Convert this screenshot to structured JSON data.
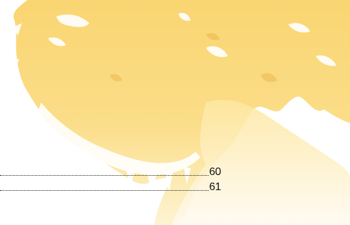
{
  "toc": {
    "entries": [
      {
        "page": "60"
      },
      {
        "page": "61"
      }
    ]
  },
  "colors": {
    "background": "#ffffff",
    "artwork_yellow_light": "#fde9a6",
    "artwork_yellow_deep": "#f7cf5c",
    "leader": "#1a1a1a"
  },
  "icons": {
    "decoration": "sun-brush-artwork"
  }
}
